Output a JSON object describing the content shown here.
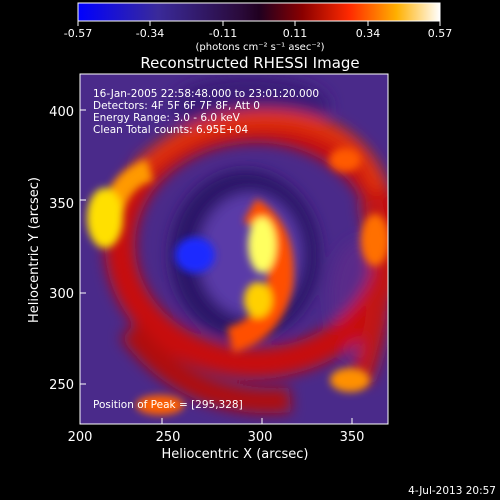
{
  "colorbar": {
    "tick_labels": [
      "-0.57",
      "-0.34",
      "-0.11",
      "0.11",
      "0.34",
      "0.57"
    ],
    "units_label": "(photons cm⁻² s⁻¹ asec⁻²)",
    "range": [
      -0.57,
      0.57
    ]
  },
  "image": {
    "title": "Reconstructed RHESSI Image",
    "info_lines": [
      "16-Jan-2005 22:58:48.000 to 23:01:20.000",
      "Detectors: 4F 5F 6F 7F 8F, Att 0",
      "Energy Range: 3.0 - 6.0 keV",
      "Clean    Total counts: 6.95E+04"
    ],
    "peak_text": "Position of Peak = [295,328]",
    "xlabel": "Heliocentric X (arcsec)",
    "ylabel": "Heliocentric Y (arcsec)",
    "x_ticks": [
      "200",
      "250",
      "300",
      "350"
    ],
    "y_ticks": [
      "250",
      "300",
      "350",
      "400"
    ],
    "x_range": [
      200,
      388
    ],
    "y_range": [
      226,
      420
    ]
  },
  "footer": {
    "timestamp": "4-Jul-2013 20:57"
  }
}
